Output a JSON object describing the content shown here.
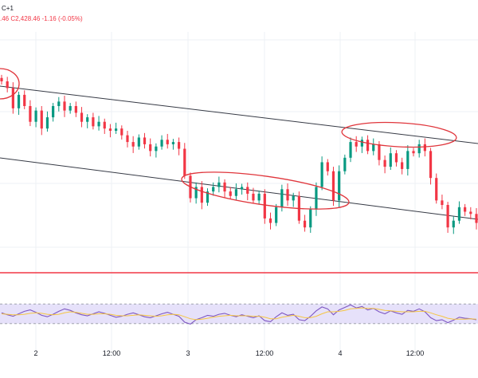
{
  "header": {
    "symbol_fragment": "C+1",
    "ohlc_text": ".46  C2,428.46  -1.16 (-0.05%)"
  },
  "colors": {
    "up": "#089981",
    "down": "#f23645",
    "channel": "#363a45",
    "ellipse": "#e0363c",
    "support": "#f23645",
    "rsi_band_fill": "#e6e1fa",
    "rsi_line": "#7e57c2",
    "rsi_ma": "#f5c542",
    "grid": "#eef0f4"
  },
  "chart_data": [
    {
      "type": "candlestick",
      "x_tick_labels": [
        "2",
        "12:00",
        "3",
        "12:00",
        "4",
        "12:00"
      ],
      "price_min": 2370,
      "price_max": 2480,
      "series": {
        "candles_path": [
          2458,
          2455,
          2446,
          2452,
          2447,
          2440,
          2445,
          2437,
          2442,
          2447,
          2449,
          2445,
          2447,
          2444,
          2440,
          2442,
          2438,
          2440,
          2437,
          2436,
          2437,
          2434,
          2431,
          2429,
          2433,
          2430,
          2427,
          2429,
          2432,
          2430,
          2431,
          2428,
          2416,
          2406,
          2411,
          2404,
          2409,
          2411,
          2413,
          2409,
          2407,
          2410,
          2411,
          2408,
          2405,
          2408,
          2397,
          2395,
          2402,
          2410,
          2405,
          2407,
          2396,
          2393,
          2401,
          2411,
          2422,
          2418,
          2405,
          2418,
          2424,
          2431,
          2429,
          2432,
          2427,
          2430,
          2423,
          2420,
          2426,
          2422,
          2419,
          2427,
          2426,
          2430,
          2427,
          2415,
          2405,
          2403,
          2393,
          2396,
          2402,
          2400,
          2399,
          2395
        ]
      },
      "annotations": {
        "channel": "descending parallel channel",
        "highlighted_zones": [
          "upper-left touch",
          "lower mid touch",
          "upper right touch"
        ],
        "horizontal_support": "red horizontal level"
      }
    },
    {
      "type": "line",
      "indicator": "RSI",
      "band": [
        30,
        70
      ],
      "series": [
        {
          "values": [
            52,
            48,
            45,
            50,
            55,
            58,
            53,
            47,
            44,
            49,
            55,
            60,
            57,
            52,
            48,
            46,
            50,
            54,
            51,
            47,
            43,
            45,
            49,
            52,
            48,
            44,
            42,
            46,
            50,
            53,
            49,
            45,
            33,
            29,
            38,
            42,
            47,
            45,
            49,
            51,
            47,
            44,
            48,
            45,
            42,
            46,
            36,
            34,
            44,
            52,
            47,
            49,
            38,
            36,
            45,
            56,
            64,
            60,
            48,
            58,
            63,
            68,
            62,
            65,
            58,
            61,
            54,
            50,
            56,
            52,
            49,
            57,
            55,
            60,
            54,
            42,
            36,
            38,
            32,
            37,
            43,
            41,
            40,
            38
          ]
        },
        {
          "values": [
            50,
            49,
            48,
            48,
            49,
            51,
            52,
            51,
            49,
            48,
            49,
            52,
            54,
            53,
            51,
            49,
            49,
            50,
            50,
            49,
            47,
            46,
            46,
            47,
            48,
            47,
            46,
            45,
            46,
            48,
            49,
            48,
            44,
            40,
            38,
            39,
            41,
            43,
            45,
            46,
            47,
            46,
            46,
            46,
            45,
            45,
            43,
            40,
            40,
            43,
            45,
            47,
            45,
            42,
            42,
            45,
            50,
            54,
            54,
            55,
            57,
            60,
            61,
            62,
            61,
            61,
            59,
            57,
            56,
            55,
            54,
            54,
            54,
            55,
            55,
            52,
            48,
            45,
            41,
            39,
            39,
            39,
            40,
            39
          ]
        }
      ]
    }
  ]
}
